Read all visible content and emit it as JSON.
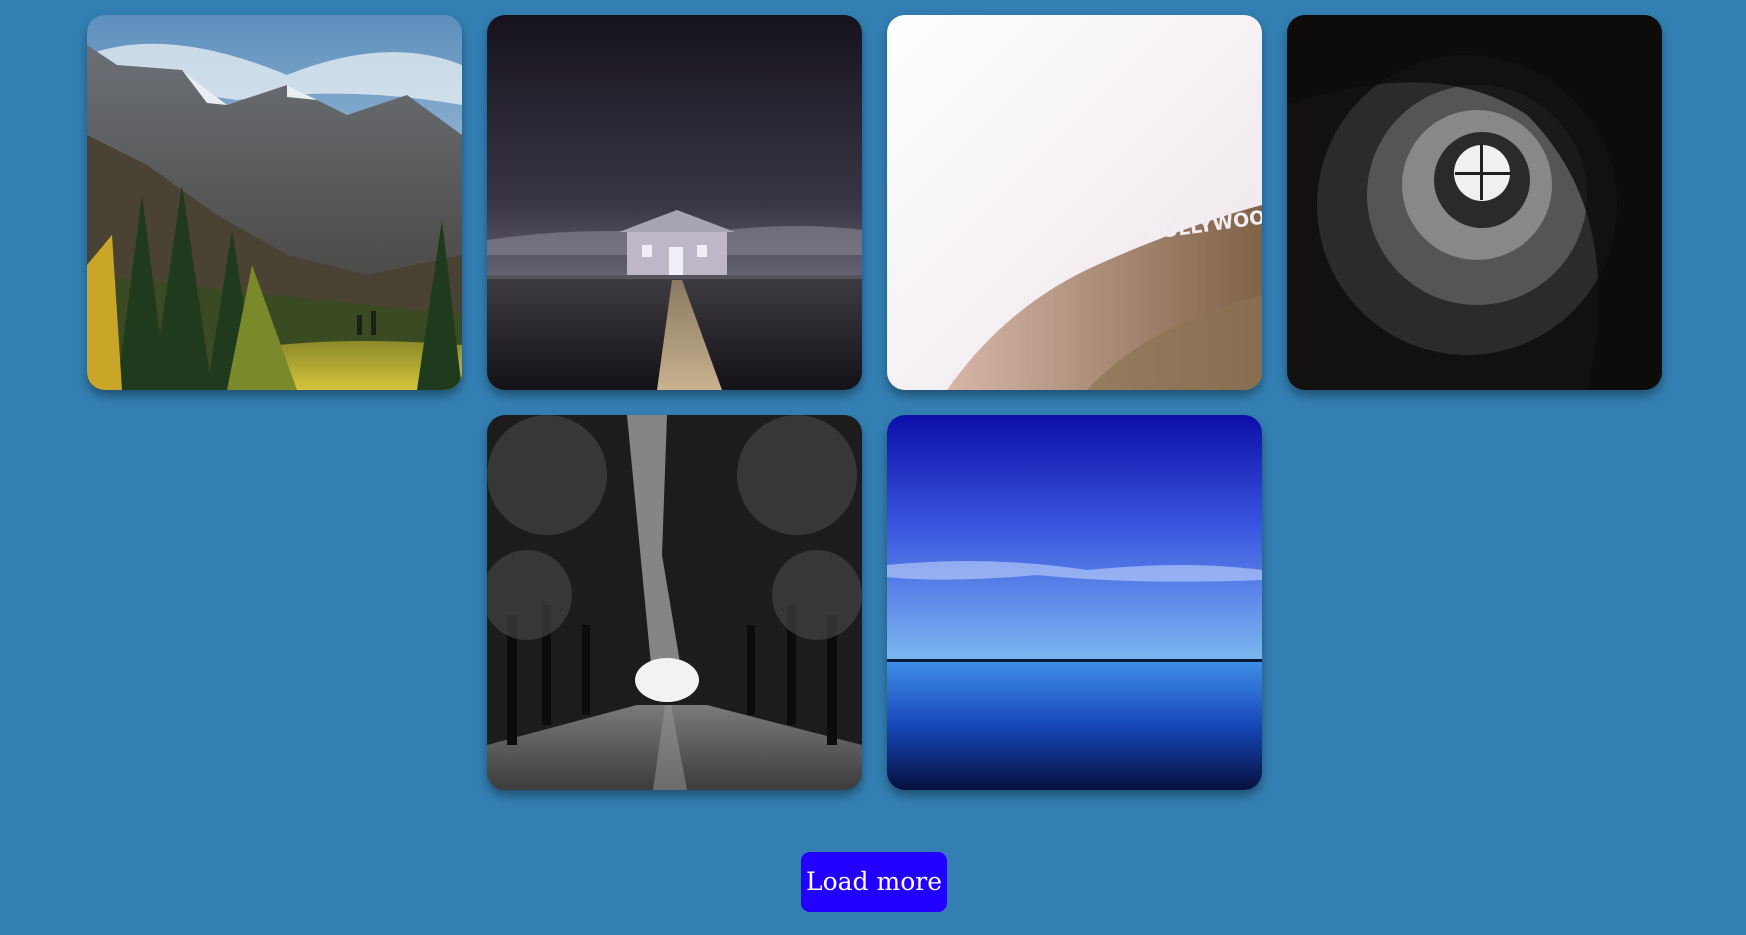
{
  "gallery": {
    "photos": [
      {
        "subject": "mountain-valley"
      },
      {
        "subject": "boathouse-pier-night"
      },
      {
        "subject": "hollywood-sign-hill",
        "sign_text": "HOLLYWOOD"
      },
      {
        "subject": "spiral-staircase"
      },
      {
        "subject": "tree-tunnel-road"
      },
      {
        "subject": "blue-lake-horizon"
      }
    ]
  },
  "actions": {
    "load_more_label": "Load more"
  },
  "colors": {
    "page_background": "#337fb3",
    "button_background": "#2200ff",
    "button_text": "#ffffff"
  }
}
